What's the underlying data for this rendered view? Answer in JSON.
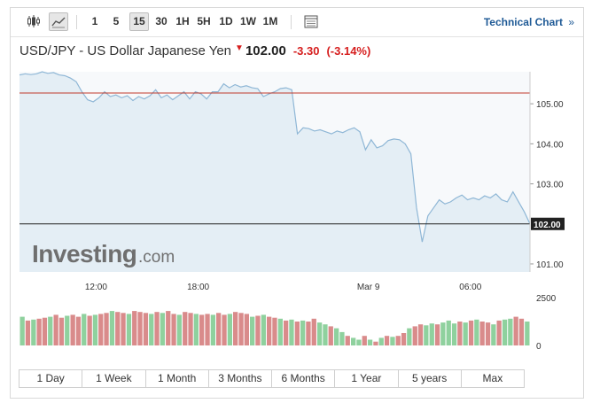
{
  "toolbar": {
    "periods": [
      "1",
      "5",
      "15",
      "30",
      "1H",
      "5H",
      "1D",
      "1W",
      "1M"
    ],
    "active_period": "15",
    "technical_chart_label": "Technical Chart",
    "technical_chart_arrow": "»",
    "icons": [
      "candlestick-icon",
      "area-chart-icon",
      "table-icon"
    ]
  },
  "quote": {
    "title": "USD/JPY - US Dollar Japanese Yen",
    "arrow": "▼",
    "price": "102.00",
    "change": "-3.30",
    "change_pct": "(-3.14%)"
  },
  "logo": {
    "main": "Investing",
    "suffix": ".com"
  },
  "colors": {
    "line": "#8fb7d6",
    "fill": "#e4eef5",
    "down": "#d61e1e",
    "bar_up": "#8fd19e",
    "bar_down": "#d98b8b",
    "link": "#1f5a96"
  },
  "chart_data": {
    "type": "area",
    "x_tick_labels": [
      "12:00",
      "18:00",
      "Mar 9",
      "06:00"
    ],
    "x_tick_positions": [
      18,
      42,
      82,
      106
    ],
    "y_ticks": [
      "105.00",
      "104.00",
      "103.00",
      "101.00"
    ],
    "y_tick_values": [
      105,
      104,
      103,
      101
    ],
    "ylim": [
      100.8,
      105.8
    ],
    "reference_line": {
      "value": 105.27,
      "color": "#c0392b"
    },
    "last_price": {
      "value": 102.0,
      "label": "102.00"
    },
    "prices": [
      105.72,
      105.75,
      105.73,
      105.75,
      105.8,
      105.76,
      105.78,
      105.72,
      105.7,
      105.64,
      105.55,
      105.3,
      105.1,
      105.05,
      105.15,
      105.3,
      105.18,
      105.22,
      105.15,
      105.2,
      105.08,
      105.18,
      105.12,
      105.2,
      105.35,
      105.15,
      105.22,
      105.1,
      105.2,
      105.3,
      105.12,
      105.3,
      105.25,
      105.12,
      105.3,
      105.3,
      105.5,
      105.4,
      105.48,
      105.42,
      105.45,
      105.4,
      105.38,
      105.18,
      105.25,
      105.3,
      105.38,
      105.4,
      105.35,
      104.25,
      104.4,
      104.38,
      104.32,
      104.35,
      104.3,
      104.25,
      104.32,
      104.28,
      104.35,
      104.4,
      104.3,
      103.85,
      104.1,
      103.9,
      103.95,
      104.08,
      104.12,
      104.1,
      104.0,
      103.75,
      102.4,
      101.55,
      102.2,
      102.4,
      102.6,
      102.5,
      102.55,
      102.65,
      102.72,
      102.6,
      102.65,
      102.6,
      102.7,
      102.65,
      102.75,
      102.6,
      102.55,
      102.8,
      102.55,
      102.3,
      102.0
    ],
    "volume": {
      "y_tick": "2500",
      "y_tick_zero": "0",
      "ylim": [
        0,
        2500
      ],
      "values": [
        1500,
        1300,
        1350,
        1400,
        1450,
        1500,
        1600,
        1450,
        1550,
        1600,
        1500,
        1650,
        1550,
        1600,
        1650,
        1700,
        1800,
        1750,
        1700,
        1650,
        1800,
        1750,
        1700,
        1650,
        1750,
        1700,
        1800,
        1650,
        1600,
        1750,
        1700,
        1650,
        1600,
        1650,
        1600,
        1700,
        1600,
        1650,
        1750,
        1700,
        1650,
        1500,
        1550,
        1600,
        1500,
        1450,
        1400,
        1300,
        1350,
        1250,
        1300,
        1250,
        1400,
        1200,
        1100,
        1000,
        900,
        700,
        500,
        400,
        300,
        500,
        300,
        200,
        400,
        500,
        450,
        500,
        650,
        900,
        1000,
        1100,
        1050,
        1150,
        1100,
        1200,
        1300,
        1150,
        1250,
        1200,
        1300,
        1350,
        1250,
        1200,
        1100,
        1300,
        1350,
        1400,
        1500,
        1400,
        1250
      ],
      "up": [
        1,
        0,
        1,
        0,
        0,
        1,
        0,
        0,
        1,
        0,
        0,
        1,
        0,
        1,
        0,
        0,
        1,
        0,
        0,
        1,
        0,
        0,
        0,
        1,
        0,
        1,
        0,
        0,
        1,
        0,
        0,
        1,
        0,
        0,
        1,
        0,
        0,
        1,
        0,
        0,
        0,
        1,
        0,
        1,
        0,
        0,
        1,
        0,
        1,
        0,
        1,
        0,
        0,
        1,
        1,
        0,
        1,
        1,
        0,
        1,
        1,
        0,
        1,
        0,
        1,
        0,
        1,
        0,
        0,
        1,
        0,
        0,
        1,
        1,
        0,
        1,
        1,
        1,
        0,
        1,
        0,
        1,
        0,
        0,
        1,
        0,
        1,
        1,
        0,
        0,
        1
      ]
    }
  },
  "time_ranges": [
    "1 Day",
    "1 Week",
    "1 Month",
    "3 Months",
    "6 Months",
    "1 Year",
    "5 years",
    "Max"
  ]
}
